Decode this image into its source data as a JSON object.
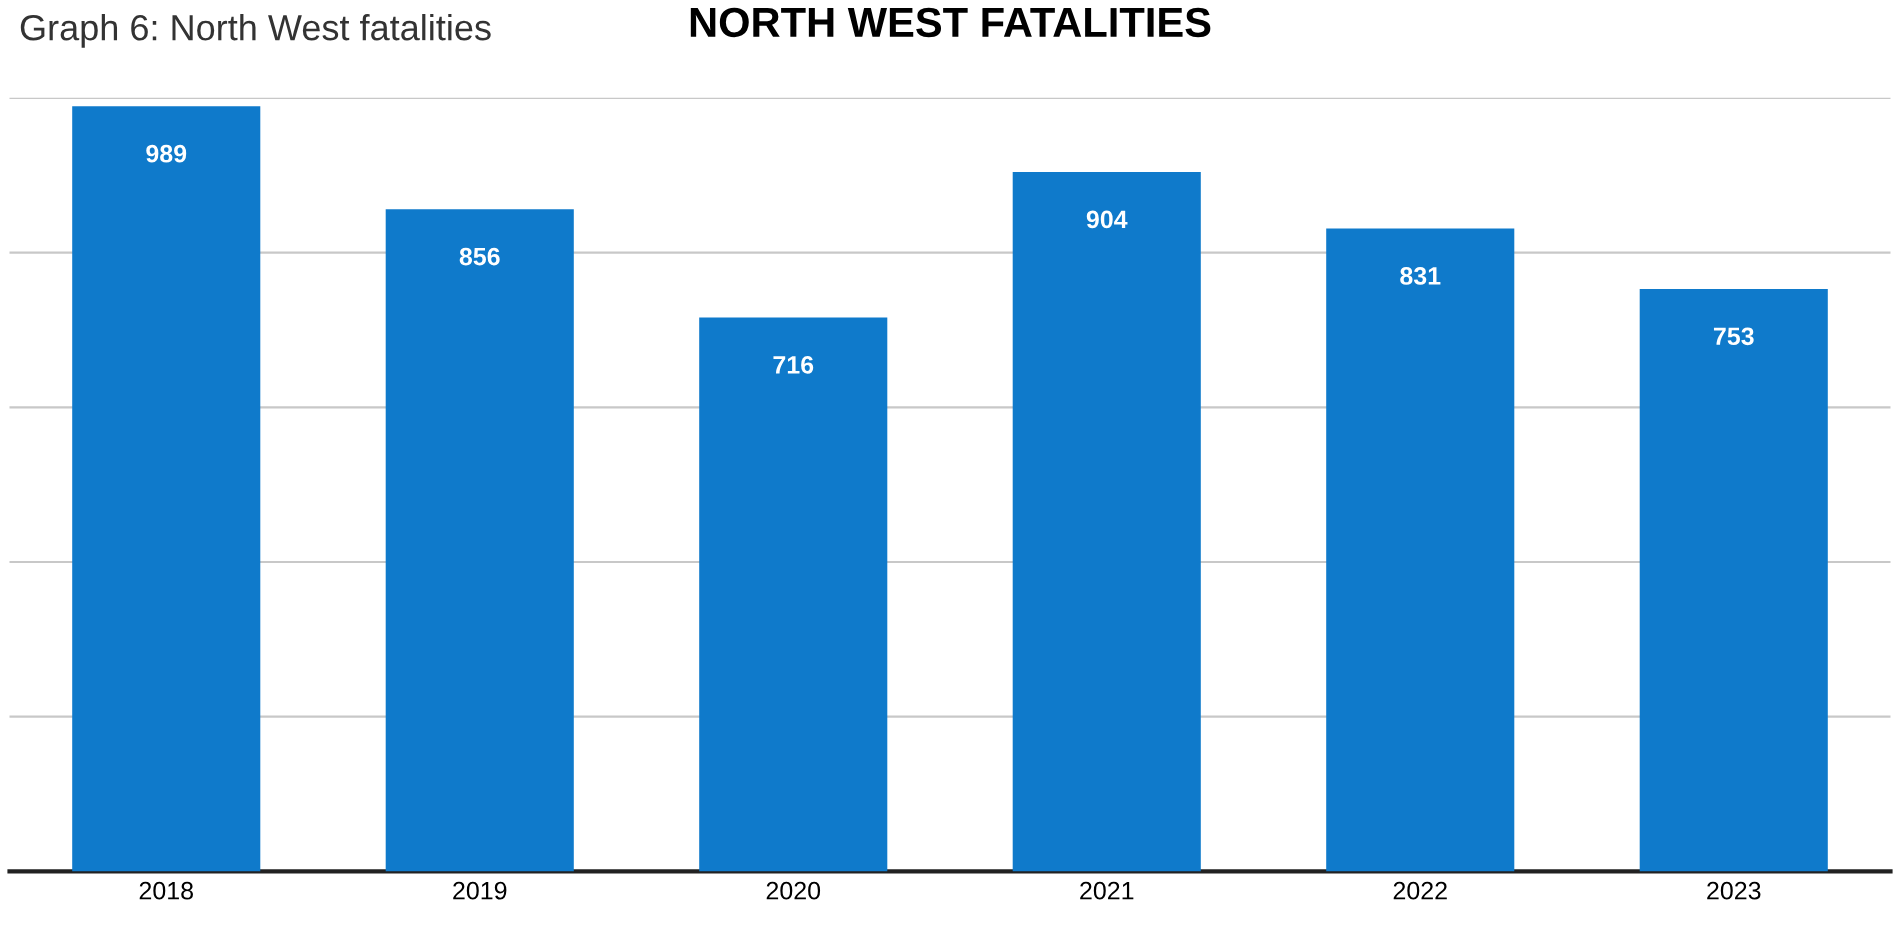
{
  "chart_data": {
    "type": "bar",
    "title": "NORTH WEST FATALITIES",
    "annotations": [
      "Graph 6: North West fatalities"
    ],
    "categories": [
      "2018",
      "2019",
      "2020",
      "2021",
      "2022",
      "2023"
    ],
    "values": [
      989,
      856,
      716,
      904,
      831,
      753
    ],
    "color": "#0f7acb",
    "data_labels": true,
    "ylim": [
      0,
      1000
    ],
    "yticks": [
      {
        "value": 200,
        "label": null
      },
      {
        "value": 400,
        "label": null
      },
      {
        "value": 600,
        "label": null
      },
      {
        "value": 800,
        "label": null
      },
      {
        "value": 1000,
        "label": null
      }
    ],
    "tick_labels": "x",
    "grid": "y"
  }
}
